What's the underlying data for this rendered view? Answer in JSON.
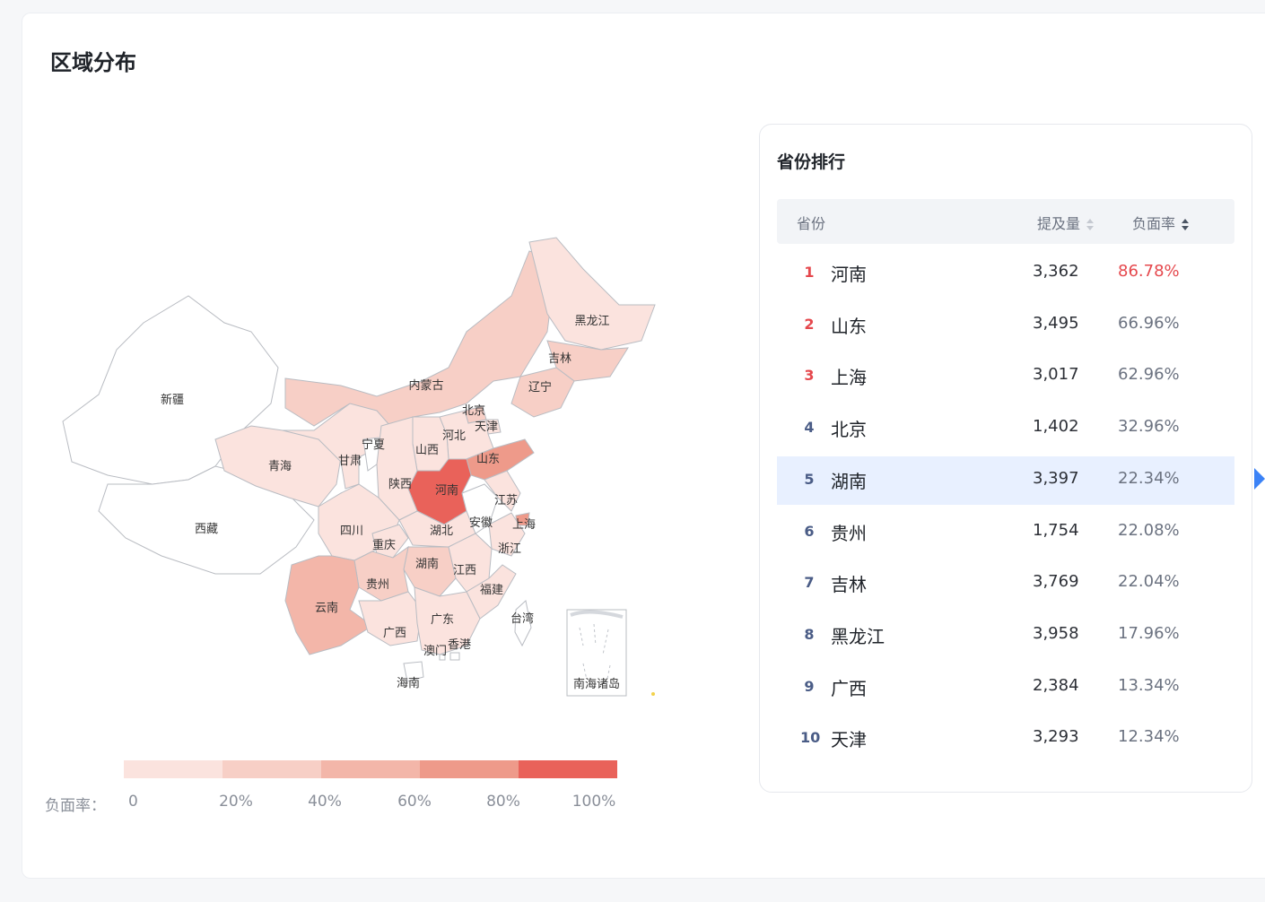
{
  "title": "区域分布",
  "map": {
    "provinces": [
      {
        "name": "新疆",
        "rate": 0
      },
      {
        "name": "西藏",
        "rate": 0
      },
      {
        "name": "青海",
        "rate": 0.1
      },
      {
        "name": "甘肃",
        "rate": 0.05
      },
      {
        "name": "宁夏",
        "rate": 0
      },
      {
        "name": "内蒙古",
        "rate": 0.38
      },
      {
        "name": "黑龙江",
        "rate": 0.1796
      },
      {
        "name": "吉林",
        "rate": 0.2204
      },
      {
        "name": "辽宁",
        "rate": 0.36
      },
      {
        "name": "北京",
        "rate": 0.3296
      },
      {
        "name": "天津",
        "rate": 0.1234
      },
      {
        "name": "河北",
        "rate": 0.12
      },
      {
        "name": "山西",
        "rate": 0.1
      },
      {
        "name": "山东",
        "rate": 0.6696
      },
      {
        "name": "河南",
        "rate": 0.8678
      },
      {
        "name": "陕西",
        "rate": 0.06
      },
      {
        "name": "四川",
        "rate": 0.1
      },
      {
        "name": "重庆",
        "rate": 0.08
      },
      {
        "name": "湖北",
        "rate": 0.1
      },
      {
        "name": "安徽",
        "rate": 0
      },
      {
        "name": "江苏",
        "rate": 0.08
      },
      {
        "name": "上海",
        "rate": 0.6296
      },
      {
        "name": "浙江",
        "rate": 0.05
      },
      {
        "name": "湖南",
        "rate": 0.2234
      },
      {
        "name": "江西",
        "rate": 0.05
      },
      {
        "name": "贵州",
        "rate": 0.2208
      },
      {
        "name": "云南",
        "rate": 0.4
      },
      {
        "name": "福建",
        "rate": 0.06
      },
      {
        "name": "广西",
        "rate": 0.1334
      },
      {
        "name": "广东",
        "rate": 0.1
      },
      {
        "name": "澳门",
        "rate": 0
      },
      {
        "name": "香港",
        "rate": 0
      },
      {
        "name": "海南",
        "rate": 0
      },
      {
        "name": "台湾",
        "rate": 0
      }
    ],
    "inset_label": "南海诸岛"
  },
  "legend": {
    "label": "负面率：",
    "ticks": [
      "0",
      "20%",
      "40%",
      "60%",
      "80%",
      "100%"
    ],
    "colors": [
      "#fbe3de",
      "#f7cfc6",
      "#f3b6a9",
      "#ee9a8a",
      "#e9625a"
    ]
  },
  "ranking": {
    "title": "省份排行",
    "columns": {
      "province": "省份",
      "mentions": "提及量",
      "negative_rate": "负面率"
    },
    "rows": [
      {
        "rank": "1",
        "province": "河南",
        "mentions": "3,362",
        "rate": "86.78%"
      },
      {
        "rank": "2",
        "province": "山东",
        "mentions": "3,495",
        "rate": "66.96%"
      },
      {
        "rank": "3",
        "province": "上海",
        "mentions": "3,017",
        "rate": "62.96%"
      },
      {
        "rank": "4",
        "province": "北京",
        "mentions": "1,402",
        "rate": "32.96%"
      },
      {
        "rank": "5",
        "province": "湖南",
        "mentions": "3,397",
        "rate": "22.34%"
      },
      {
        "rank": "6",
        "province": "贵州",
        "mentions": "1,754",
        "rate": "22.08%"
      },
      {
        "rank": "7",
        "province": "吉林",
        "mentions": "3,769",
        "rate": "22.04%"
      },
      {
        "rank": "8",
        "province": "黑龙江",
        "mentions": "3,958",
        "rate": "17.96%"
      },
      {
        "rank": "9",
        "province": "广西",
        "mentions": "2,384",
        "rate": "13.34%"
      },
      {
        "rank": "10",
        "province": "天津",
        "mentions": "3,293",
        "rate": "12.34%"
      }
    ],
    "selected_rank": "5",
    "colors": {
      "top_rank": "#e5484d",
      "normal_rank": "#4a5c86",
      "hot_rate": "#e5484d",
      "selected_bg": "#e8f0ff",
      "pointer": "#3b82f6"
    }
  }
}
